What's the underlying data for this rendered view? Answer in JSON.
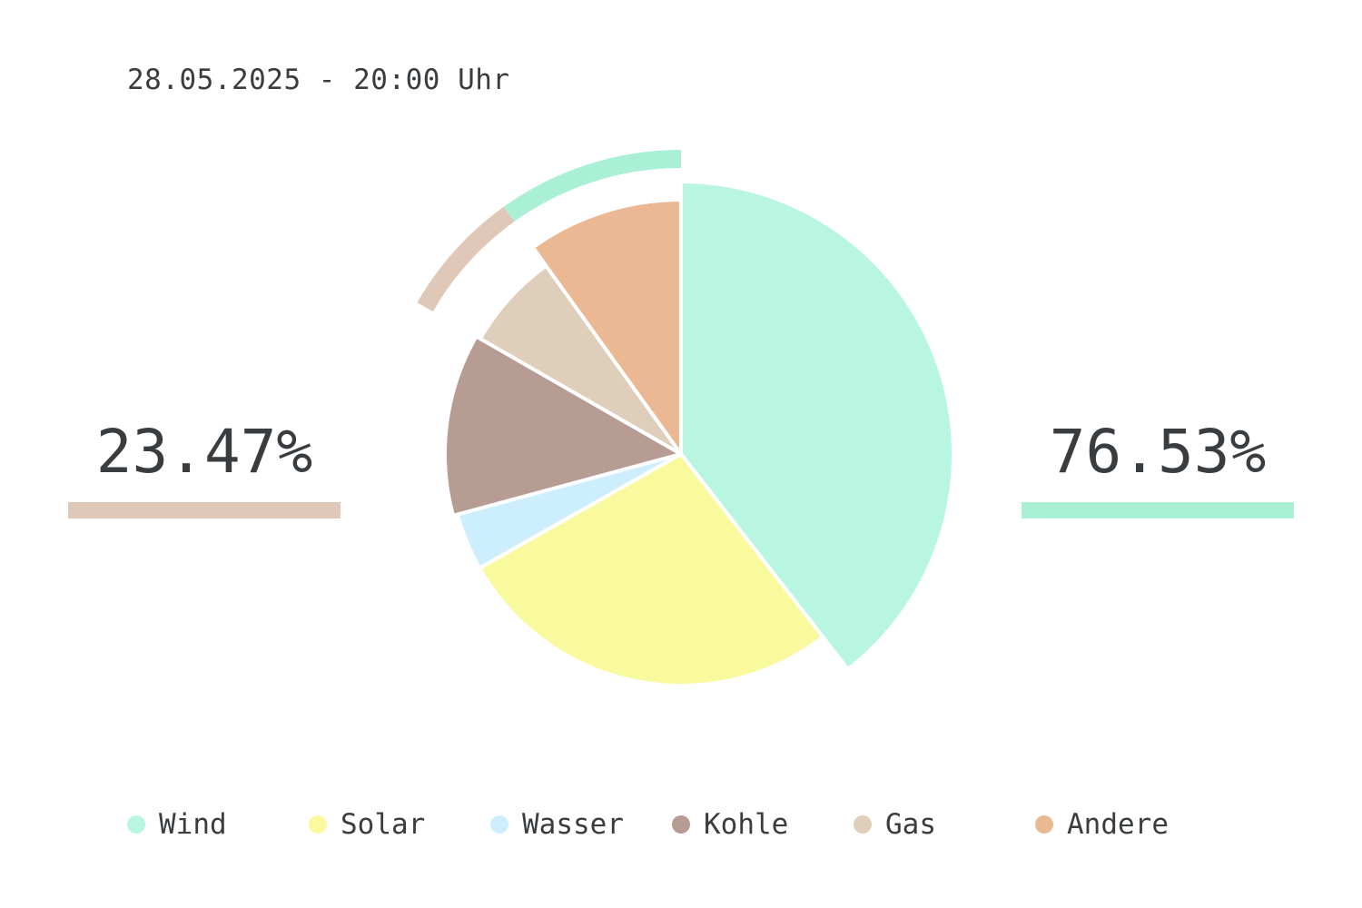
{
  "timestamp": "28.05.2025 - 20:00 Uhr",
  "left_stat": {
    "value": "23.47%",
    "color": "#e0c8b8"
  },
  "right_stat": {
    "value": "76.53%",
    "color": "#aaf0d4"
  },
  "legend": [
    {
      "label": "Wind",
      "color": "#b9f6e1"
    },
    {
      "label": "Solar",
      "color": "#f9fa9d"
    },
    {
      "label": "Wasser",
      "color": "#cdeefd"
    },
    {
      "label": "Kohle",
      "color": "#b79c93"
    },
    {
      "label": "Gas",
      "color": "#dfceb9"
    },
    {
      "label": "Andere",
      "color": "#ebb894"
    }
  ],
  "chart_data": {
    "type": "pie",
    "start_angle": "12 o'clock",
    "direction": "clockwise",
    "slices": [
      {
        "label": "Wind",
        "value": 39.5,
        "color": "#b9f6e1"
      },
      {
        "label": "Solar",
        "value": 27.3,
        "color": "#f9fa9d"
      },
      {
        "label": "Wasser",
        "value": 4.0,
        "color": "#cdeefd"
      },
      {
        "label": "Kohle",
        "value": 12.5,
        "color": "#b79c93"
      },
      {
        "label": "Gas",
        "value": 6.8,
        "color": "#dfceb9"
      },
      {
        "label": "Andere",
        "value": 9.9,
        "color": "#ebb894"
      }
    ],
    "outer_ring": [
      {
        "label": "Gas",
        "value": 6.8,
        "color": "#e0c8b8"
      },
      {
        "label": "Andere",
        "value": 9.9,
        "color": "#aaf0d4"
      }
    ],
    "stats": [
      {
        "value": "23.47%",
        "position": "left"
      },
      {
        "value": "76.53%",
        "position": "right"
      }
    ]
  }
}
